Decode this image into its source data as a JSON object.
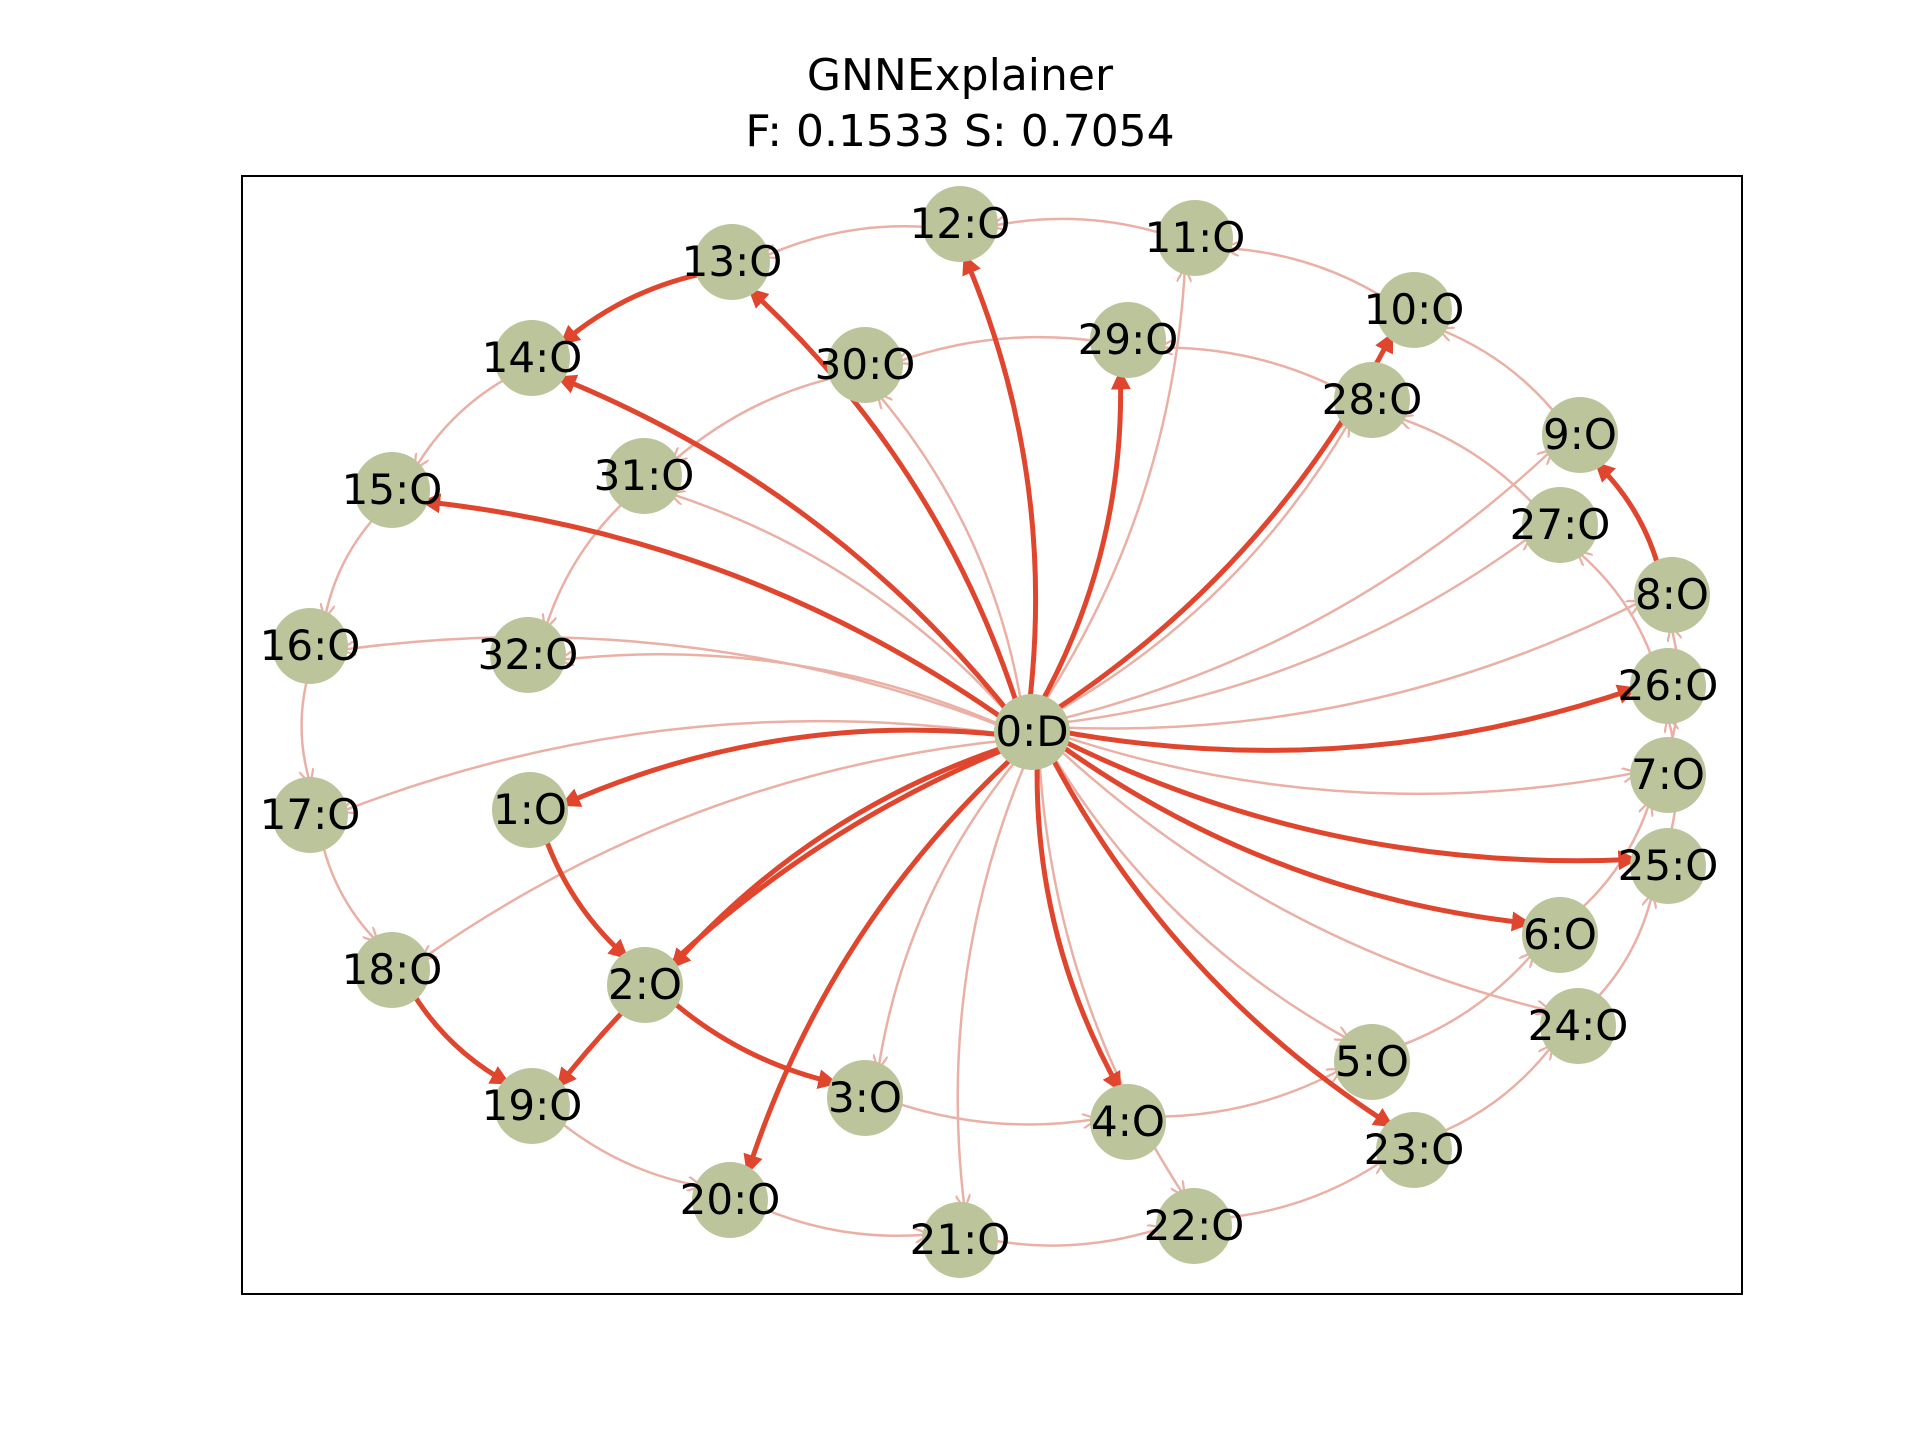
{
  "title": "GNNExplainer",
  "subtitle": "F: 0.1533  S: 0.7054",
  "colors": {
    "node_fill": "#bcc49c",
    "edge_important": "#e0452e",
    "edge_faint": "#eab0a5",
    "frame": "#000000",
    "label": "#000000"
  },
  "nodes": [
    {
      "id": 0,
      "label": "0:D"
    },
    {
      "id": 1,
      "label": "1:O"
    },
    {
      "id": 2,
      "label": "2:O"
    },
    {
      "id": 3,
      "label": "3:O"
    },
    {
      "id": 4,
      "label": "4:O"
    },
    {
      "id": 5,
      "label": "5:O"
    },
    {
      "id": 6,
      "label": "6:O"
    },
    {
      "id": 7,
      "label": "7:O"
    },
    {
      "id": 8,
      "label": "8:O"
    },
    {
      "id": 9,
      "label": "9:O"
    },
    {
      "id": 10,
      "label": "10:O"
    },
    {
      "id": 11,
      "label": "11:O"
    },
    {
      "id": 12,
      "label": "12:O"
    },
    {
      "id": 13,
      "label": "13:O"
    },
    {
      "id": 14,
      "label": "14:O"
    },
    {
      "id": 15,
      "label": "15:O"
    },
    {
      "id": 16,
      "label": "16:O"
    },
    {
      "id": 17,
      "label": "17:O"
    },
    {
      "id": 18,
      "label": "18:O"
    },
    {
      "id": 19,
      "label": "19:O"
    },
    {
      "id": 20,
      "label": "20:O"
    },
    {
      "id": 21,
      "label": "21:O"
    },
    {
      "id": 22,
      "label": "22:O"
    },
    {
      "id": 23,
      "label": "23:O"
    },
    {
      "id": 24,
      "label": "24:O"
    },
    {
      "id": 25,
      "label": "25:O"
    },
    {
      "id": 26,
      "label": "26:O"
    },
    {
      "id": 27,
      "label": "27:O"
    },
    {
      "id": 28,
      "label": "28:O"
    },
    {
      "id": 29,
      "label": "29:O"
    },
    {
      "id": 30,
      "label": "30:O"
    },
    {
      "id": 31,
      "label": "31:O"
    },
    {
      "id": 32,
      "label": "32:O"
    }
  ],
  "edges": [
    {
      "source": 0,
      "target": 1,
      "important": true
    },
    {
      "source": 0,
      "target": 2,
      "important": true
    },
    {
      "source": 0,
      "target": 3,
      "important": false
    },
    {
      "source": 0,
      "target": 4,
      "important": true
    },
    {
      "source": 0,
      "target": 5,
      "important": false
    },
    {
      "source": 0,
      "target": 6,
      "important": true
    },
    {
      "source": 0,
      "target": 7,
      "important": false
    },
    {
      "source": 0,
      "target": 8,
      "important": false
    },
    {
      "source": 0,
      "target": 9,
      "important": false
    },
    {
      "source": 0,
      "target": 10,
      "important": true
    },
    {
      "source": 0,
      "target": 11,
      "important": false
    },
    {
      "source": 0,
      "target": 12,
      "important": true
    },
    {
      "source": 0,
      "target": 13,
      "important": true
    },
    {
      "source": 0,
      "target": 14,
      "important": true
    },
    {
      "source": 0,
      "target": 15,
      "important": true
    },
    {
      "source": 0,
      "target": 16,
      "important": false
    },
    {
      "source": 0,
      "target": 17,
      "important": false
    },
    {
      "source": 0,
      "target": 18,
      "important": false
    },
    {
      "source": 0,
      "target": 19,
      "important": true
    },
    {
      "source": 0,
      "target": 20,
      "important": true
    },
    {
      "source": 0,
      "target": 21,
      "important": false
    },
    {
      "source": 0,
      "target": 22,
      "important": false
    },
    {
      "source": 0,
      "target": 23,
      "important": true
    },
    {
      "source": 0,
      "target": 24,
      "important": false
    },
    {
      "source": 0,
      "target": 25,
      "important": true
    },
    {
      "source": 0,
      "target": 26,
      "important": true
    },
    {
      "source": 0,
      "target": 27,
      "important": false
    },
    {
      "source": 0,
      "target": 28,
      "important": false
    },
    {
      "source": 0,
      "target": 29,
      "important": true
    },
    {
      "source": 0,
      "target": 30,
      "important": false
    },
    {
      "source": 0,
      "target": 31,
      "important": false
    },
    {
      "source": 0,
      "target": 32,
      "important": false
    },
    {
      "source": 1,
      "target": 2,
      "important": true
    },
    {
      "source": 2,
      "target": 3,
      "important": true
    },
    {
      "source": 3,
      "target": 4,
      "important": false
    },
    {
      "source": 4,
      "target": 5,
      "important": false
    },
    {
      "source": 5,
      "target": 6,
      "important": false
    },
    {
      "source": 6,
      "target": 7,
      "important": false
    },
    {
      "source": 7,
      "target": 8,
      "important": false
    },
    {
      "source": 8,
      "target": 9,
      "important": true
    },
    {
      "source": 9,
      "target": 10,
      "important": false
    },
    {
      "source": 10,
      "target": 11,
      "important": false
    },
    {
      "source": 11,
      "target": 12,
      "important": false
    },
    {
      "source": 12,
      "target": 13,
      "important": false
    },
    {
      "source": 13,
      "target": 14,
      "important": true
    },
    {
      "source": 14,
      "target": 15,
      "important": false
    },
    {
      "source": 15,
      "target": 16,
      "important": false
    },
    {
      "source": 16,
      "target": 17,
      "important": false
    },
    {
      "source": 17,
      "target": 18,
      "important": false
    },
    {
      "source": 18,
      "target": 19,
      "important": true
    },
    {
      "source": 19,
      "target": 20,
      "important": false
    },
    {
      "source": 20,
      "target": 21,
      "important": false
    },
    {
      "source": 21,
      "target": 22,
      "important": false
    },
    {
      "source": 22,
      "target": 23,
      "important": false
    },
    {
      "source": 23,
      "target": 24,
      "important": false
    },
    {
      "source": 24,
      "target": 25,
      "important": false
    },
    {
      "source": 25,
      "target": 26,
      "important": false
    },
    {
      "source": 26,
      "target": 27,
      "important": false
    },
    {
      "source": 27,
      "target": 28,
      "important": false
    },
    {
      "source": 28,
      "target": 29,
      "important": false
    },
    {
      "source": 29,
      "target": 30,
      "important": false
    },
    {
      "source": 30,
      "target": 31,
      "important": false
    },
    {
      "source": 31,
      "target": 32,
      "important": false
    }
  ]
}
